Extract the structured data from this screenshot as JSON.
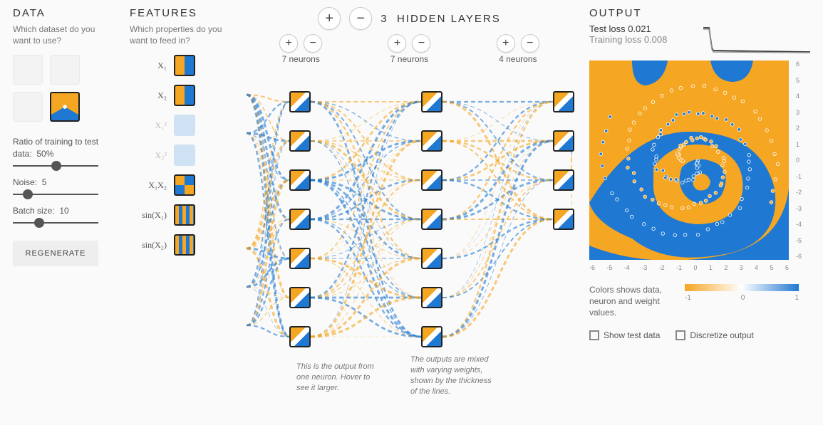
{
  "data": {
    "title": "DATA",
    "caption": "Which dataset do you want to use?",
    "datasets": [
      "circle",
      "xor",
      "gauss",
      "spiral"
    ],
    "selected_dataset": "spiral",
    "ratio": {
      "label_prefix": "Ratio of training to test data:",
      "value": "50%",
      "pos_pct": 45
    },
    "noise": {
      "label_prefix": "Noise:",
      "value": "5",
      "pos_pct": 12
    },
    "batch": {
      "label_prefix": "Batch size:",
      "value": "10",
      "pos_pct": 25
    },
    "regenerate_label": "REGENERATE"
  },
  "features": {
    "title": "FEATURES",
    "caption": "Which properties do you want to feed in?",
    "items": [
      {
        "label": "X₁",
        "active": true,
        "style": "lr"
      },
      {
        "label": "X₂",
        "active": true,
        "style": "lr"
      },
      {
        "label": "X₁²",
        "active": false,
        "style": "plain"
      },
      {
        "label": "X₂²",
        "active": false,
        "style": "plain"
      },
      {
        "label": "X₁X₂",
        "active": true,
        "style": "xor"
      },
      {
        "label": "sin(X₁)",
        "active": true,
        "style": "stripes"
      },
      {
        "label": "sin(X₂)",
        "active": true,
        "style": "stripes"
      }
    ]
  },
  "network": {
    "hidden_count": "3",
    "hidden_label": "HIDDEN LAYERS",
    "layers": [
      {
        "neurons": 7,
        "label": "7 neurons"
      },
      {
        "neurons": 7,
        "label": "7 neurons"
      },
      {
        "neurons": 4,
        "label": "4 neurons"
      }
    ],
    "caption_neuron": "This is the output from one neuron. Hover to see it larger.",
    "caption_weights": "The outputs are mixed with varying weights, shown by the thickness of the lines.",
    "colors": {
      "positive": "#1f78d1",
      "negative": "#f5a623"
    },
    "layer_x": [
      60,
      245,
      430
    ],
    "neuron_spacing_y": 55,
    "neuron_top_y": 30,
    "neuron_size": 30
  },
  "output": {
    "title": "OUTPUT",
    "test_loss_label": "Test loss",
    "test_loss_value": "0.021",
    "train_loss_label": "Training loss",
    "train_loss_value": "0.008",
    "y_ticks": [
      "6",
      "5",
      "4",
      "3",
      "2",
      "1",
      "0",
      "-1",
      "-2",
      "-3",
      "-4",
      "-5",
      "-6"
    ],
    "x_ticks": [
      "-6",
      "-5",
      "-4",
      "-3",
      "-2",
      "-1",
      "0",
      "1",
      "2",
      "3",
      "4",
      "5",
      "6"
    ],
    "legend_text": "Colors shows data, neuron and weight values.",
    "legend_min": "-1",
    "legend_mid": "0",
    "legend_max": "1",
    "show_test_label": "Show test data",
    "discretize_label": "Discretize output",
    "colors": {
      "orange": "#f5a623",
      "blue": "#1f78d1",
      "bg": "#fafafa"
    }
  }
}
